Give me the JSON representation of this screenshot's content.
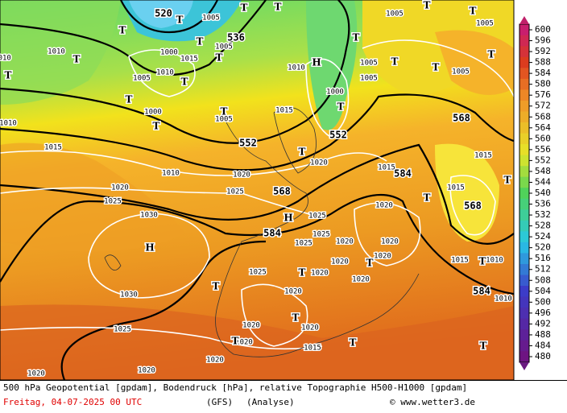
{
  "footer": {
    "line1": "500 hPa Geopotential [gpdam], Bodendruck [hPa], relative Topographie H500-H1000 [gpdam]",
    "date": "Freitag, 04-07-2025  00 UTC",
    "model": "(GFS)",
    "run": "(Analyse)",
    "credit": "© www.wetter3.de"
  },
  "colorbar": {
    "ticks": [
      600,
      596,
      592,
      588,
      584,
      580,
      576,
      572,
      568,
      564,
      560,
      556,
      552,
      548,
      544,
      540,
      536,
      532,
      528,
      524,
      520,
      516,
      512,
      508,
      504,
      500,
      496,
      492,
      488,
      484,
      480
    ]
  },
  "geopotential_labels": [
    520,
    536,
    552,
    552,
    568,
    584,
    584,
    568,
    568,
    584
  ],
  "isobar_labels": [
    1005,
    1010,
    1005,
    1000,
    1010,
    1015,
    1005,
    1010,
    1005,
    1005,
    1000,
    1015,
    1005,
    1000,
    1015,
    1010,
    1020,
    1020,
    1025,
    1025,
    1020,
    1030,
    1025,
    1020,
    1015,
    1015,
    1015,
    1025,
    1025,
    1020,
    1020,
    1020,
    1020,
    1025,
    1020,
    1020,
    1020,
    1030,
    1025,
    1020,
    1020,
    1020,
    1015,
    1020,
    1020,
    1020,
    1015,
    1010,
    1010,
    1010,
    1010,
    1005,
    1005,
    1005
  ],
  "pressure_centers": [
    "T",
    "T",
    "T",
    "T",
    "T",
    "T",
    "T",
    "T",
    "T",
    "T",
    "T",
    "T",
    "H",
    "T",
    "T",
    "T",
    "T",
    "T",
    "T",
    "H",
    "H",
    "T",
    "T",
    "T",
    "T",
    "T",
    "T",
    "T",
    "T",
    "T",
    "T",
    "T",
    "T"
  ]
}
